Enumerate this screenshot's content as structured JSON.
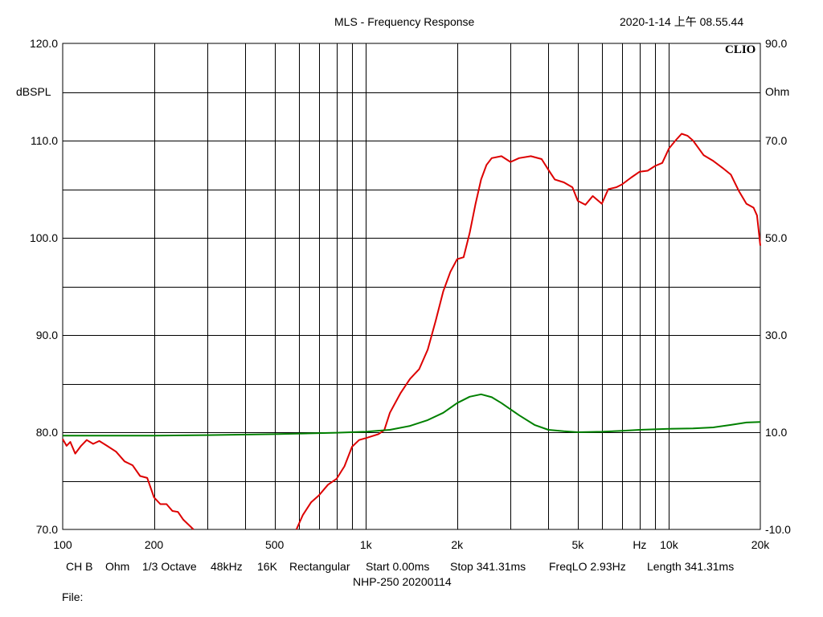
{
  "header": {
    "title": "MLS - Frequency Response",
    "timestamp": "2020-1-14 上午 08.55.44",
    "brand": "CLIO"
  },
  "chart_data": {
    "type": "line",
    "xscale": "log",
    "xlim": [
      100,
      20000
    ],
    "ylim_left": [
      70,
      120
    ],
    "ylim_right": [
      -10,
      90
    ],
    "ylabel_left": "dBSPL",
    "ylabel_right": "Ohm",
    "xlabel": "Hz",
    "grid": true,
    "x_ticks": [
      {
        "value": 100,
        "label": "100"
      },
      {
        "value": 200,
        "label": "200"
      },
      {
        "value": 500,
        "label": "500"
      },
      {
        "value": 1000,
        "label": "1k"
      },
      {
        "value": 2000,
        "label": "2k"
      },
      {
        "value": 5000,
        "label": "5k"
      },
      {
        "value": 10000,
        "label": "10k"
      },
      {
        "value": 20000,
        "label": "20k"
      }
    ],
    "y_left_ticks": [
      {
        "value": 120,
        "label": "120.0"
      },
      {
        "value": 110,
        "label": "110.0"
      },
      {
        "value": 100,
        "label": "100.0"
      },
      {
        "value": 90,
        "label": "90.0"
      },
      {
        "value": 80,
        "label": "80.0"
      },
      {
        "value": 70,
        "label": "70.0"
      }
    ],
    "y_right_ticks": [
      {
        "value": 90,
        "label": "90.0"
      },
      {
        "value": 70,
        "label": "70.0"
      },
      {
        "value": 50,
        "label": "50.0"
      },
      {
        "value": 30,
        "label": "30.0"
      },
      {
        "value": 10,
        "label": "10.0"
      },
      {
        "value": -10,
        "label": "-10.0"
      }
    ],
    "series": [
      {
        "color": "#dd0000",
        "axis": "left",
        "segments": [
          [
            [
              100,
              79.3
            ],
            [
              103,
              78.6
            ],
            [
              106,
              79.0
            ],
            [
              110,
              77.8
            ],
            [
              115,
              78.6
            ],
            [
              120,
              79.2
            ],
            [
              126,
              78.8
            ],
            [
              132,
              79.1
            ],
            [
              140,
              78.6
            ],
            [
              150,
              78.0
            ],
            [
              160,
              77.0
            ],
            [
              170,
              76.6
            ],
            [
              180,
              75.5
            ],
            [
              190,
              75.3
            ],
            [
              200,
              73.3
            ],
            [
              210,
              72.6
            ],
            [
              220,
              72.6
            ],
            [
              230,
              71.9
            ],
            [
              240,
              71.8
            ],
            [
              250,
              71.0
            ],
            [
              260,
              70.5
            ],
            [
              270,
              70.0
            ]
          ],
          [
            [
              590,
              70.0
            ],
            [
              620,
              71.5
            ],
            [
              660,
              72.8
            ],
            [
              700,
              73.5
            ],
            [
              750,
              74.6
            ],
            [
              800,
              75.2
            ],
            [
              850,
              76.5
            ],
            [
              900,
              78.5
            ],
            [
              950,
              79.2
            ],
            [
              1000,
              79.4
            ],
            [
              1050,
              79.6
            ],
            [
              1100,
              79.8
            ],
            [
              1150,
              80.2
            ],
            [
              1200,
              82.0
            ],
            [
              1300,
              84.0
            ],
            [
              1400,
              85.5
            ],
            [
              1500,
              86.5
            ],
            [
              1600,
              88.5
            ],
            [
              1700,
              91.5
            ],
            [
              1800,
              94.5
            ],
            [
              1900,
              96.5
            ],
            [
              2000,
              97.8
            ],
            [
              2100,
              98.0
            ],
            [
              2200,
              100.5
            ],
            [
              2300,
              103.5
            ],
            [
              2400,
              106.0
            ],
            [
              2500,
              107.5
            ],
            [
              2600,
              108.2
            ],
            [
              2800,
              108.4
            ],
            [
              3000,
              107.8
            ],
            [
              3200,
              108.2
            ],
            [
              3500,
              108.4
            ],
            [
              3800,
              108.1
            ],
            [
              4000,
              107.0
            ],
            [
              4200,
              106.0
            ],
            [
              4500,
              105.7
            ],
            [
              4800,
              105.2
            ],
            [
              5000,
              103.8
            ],
            [
              5300,
              103.4
            ],
            [
              5600,
              104.3
            ],
            [
              6000,
              103.5
            ],
            [
              6300,
              105.0
            ],
            [
              6700,
              105.2
            ],
            [
              7000,
              105.5
            ],
            [
              7500,
              106.2
            ],
            [
              8000,
              106.8
            ],
            [
              8500,
              106.9
            ],
            [
              9000,
              107.4
            ],
            [
              9500,
              107.7
            ],
            [
              10000,
              109.2
            ],
            [
              10500,
              110.0
            ],
            [
              11000,
              110.7
            ],
            [
              11500,
              110.5
            ],
            [
              12000,
              110.0
            ],
            [
              13000,
              108.5
            ],
            [
              14000,
              107.9
            ],
            [
              15000,
              107.2
            ],
            [
              16000,
              106.5
            ],
            [
              17000,
              104.8
            ],
            [
              18000,
              103.5
            ],
            [
              19000,
              103.1
            ],
            [
              19500,
              102.3
            ],
            [
              20000,
              99.2
            ]
          ]
        ]
      },
      {
        "color": "#008000",
        "axis": "right",
        "segments": [
          [
            [
              100,
              9.3
            ],
            [
              200,
              9.3
            ],
            [
              300,
              9.4
            ],
            [
              500,
              9.6
            ],
            [
              800,
              9.9
            ],
            [
              1000,
              10.1
            ],
            [
              1200,
              10.5
            ],
            [
              1400,
              11.3
            ],
            [
              1600,
              12.5
            ],
            [
              1800,
              14.0
            ],
            [
              2000,
              16.0
            ],
            [
              2200,
              17.3
            ],
            [
              2400,
              17.8
            ],
            [
              2600,
              17.2
            ],
            [
              2800,
              16.0
            ],
            [
              3200,
              13.5
            ],
            [
              3600,
              11.5
            ],
            [
              4000,
              10.5
            ],
            [
              4500,
              10.2
            ],
            [
              5000,
              10.0
            ],
            [
              6000,
              10.1
            ],
            [
              7000,
              10.3
            ],
            [
              8000,
              10.5
            ],
            [
              10000,
              10.7
            ],
            [
              12000,
              10.8
            ],
            [
              14000,
              11.0
            ],
            [
              16000,
              11.5
            ],
            [
              18000,
              12.0
            ],
            [
              20000,
              12.1
            ]
          ]
        ]
      }
    ]
  },
  "footer": {
    "line1": [
      {
        "key": "channel",
        "text": "CH B"
      },
      {
        "key": "unit",
        "text": "Ohm"
      },
      {
        "key": "smoothing",
        "text": "1/3 Octave"
      },
      {
        "key": "samplerate",
        "text": "48kHz"
      },
      {
        "key": "size",
        "text": "16K"
      },
      {
        "key": "window",
        "text": "Rectangular"
      },
      {
        "key": "start",
        "text": "Start 0.00ms"
      },
      {
        "key": "stop",
        "text": "Stop 341.31ms"
      },
      {
        "key": "freqlo",
        "text": "FreqLO 2.93Hz"
      },
      {
        "key": "length",
        "text": "Length 341.31ms"
      }
    ],
    "line2": "NHP-250  20200114",
    "file_label": "File:"
  }
}
